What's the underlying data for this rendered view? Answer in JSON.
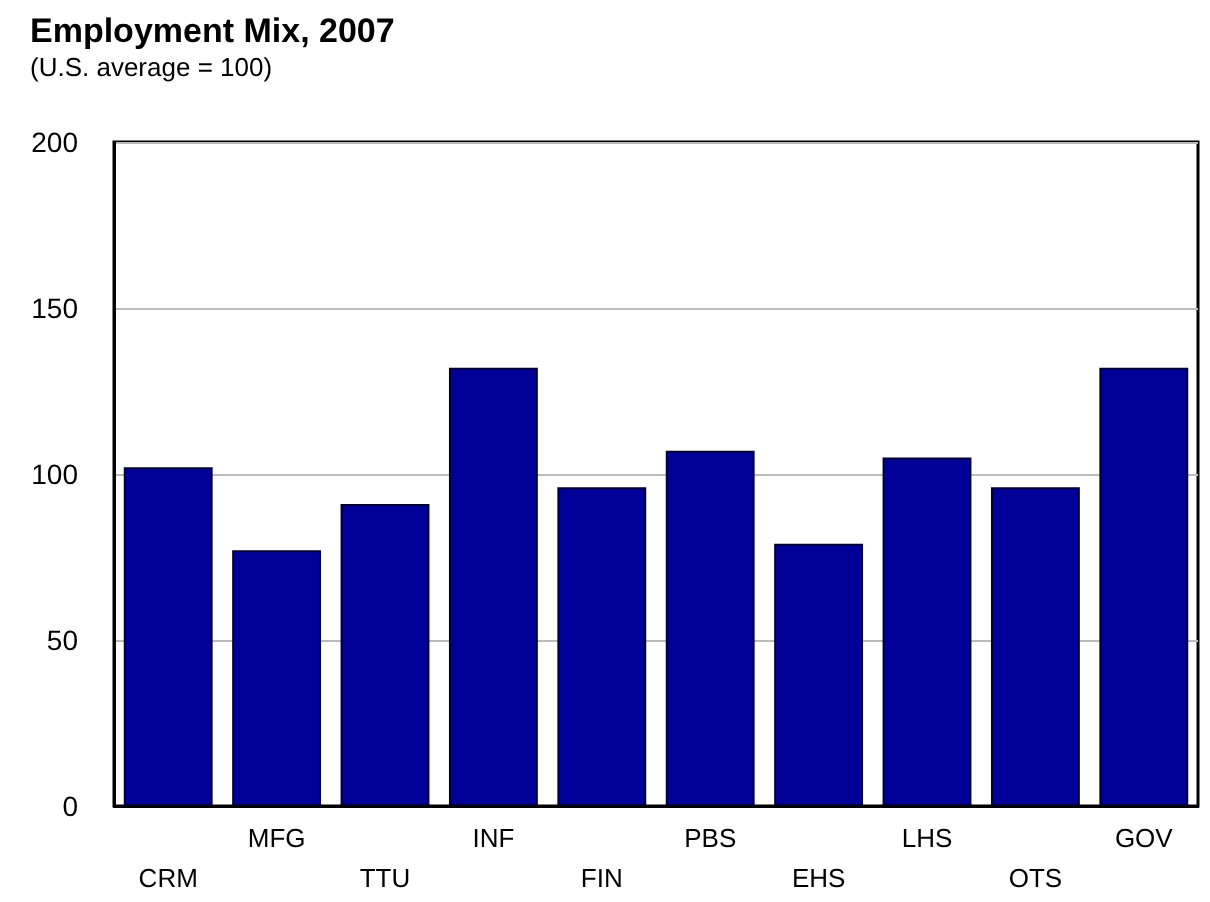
{
  "chart_data": {
    "type": "bar",
    "title": "Employment Mix, 2007",
    "subtitle": "(U.S. average = 100)",
    "categories": [
      "CRM",
      "MFG",
      "TTU",
      "INF",
      "FIN",
      "PBS",
      "EHS",
      "LHS",
      "OTS",
      "GOV"
    ],
    "values": [
      102,
      77,
      91,
      132,
      96,
      107,
      79,
      105,
      96,
      132
    ],
    "color": "#000099",
    "ylim": [
      0,
      200
    ],
    "yticks": [
      0,
      50,
      100,
      150,
      200
    ],
    "grid": "y"
  }
}
